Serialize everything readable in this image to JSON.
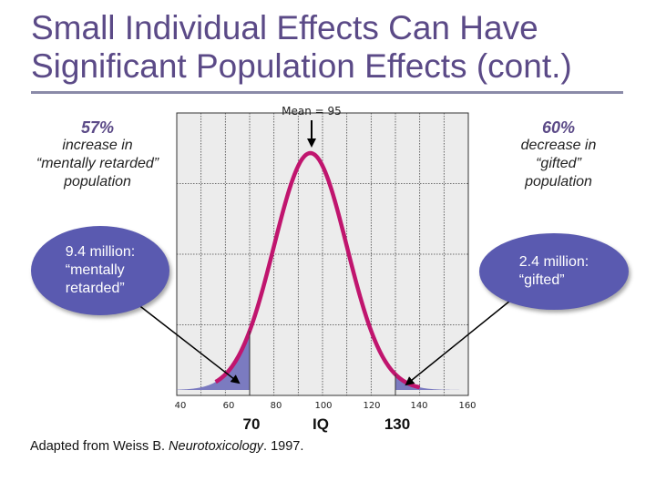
{
  "title": "Small Individual Effects Can Have Significant Population Effects (cont.)",
  "left_note": {
    "percent": "57%",
    "line1": "increase in",
    "line2": "“mentally retarded”",
    "line3": "population"
  },
  "right_note": {
    "percent": "60%",
    "line1": "decrease in",
    "line2": "“gifted”",
    "line3": "population"
  },
  "left_bubble": "9.4 million:\n“mentally\nretarded”",
  "right_bubble": "2.4 million:\n“gifted”",
  "source": {
    "prefix": "Adapted from Weiss B. ",
    "journal": "Neurotoxicology",
    "suffix": ". 1997."
  },
  "colors": {
    "title": "#5b4a87",
    "curve": "#c0156e",
    "fill": "#7b7bc0",
    "bubble": "#5a5ab0",
    "plot_bg": "#ececec"
  },
  "chart_data": {
    "type": "line",
    "title": "",
    "mean_label": "Mean = 95",
    "mean": 95,
    "sd": 15,
    "xlim": [
      40,
      160
    ],
    "x_ticks": [
      40,
      60,
      80,
      100,
      120,
      140,
      160
    ],
    "marked_values": [
      70,
      130
    ],
    "marked_labels": [
      "70",
      "130"
    ],
    "xlabel": "IQ",
    "shaded_tails": [
      {
        "from": 40,
        "to": 70
      },
      {
        "from": 130,
        "to": 160
      }
    ],
    "grid": true
  }
}
